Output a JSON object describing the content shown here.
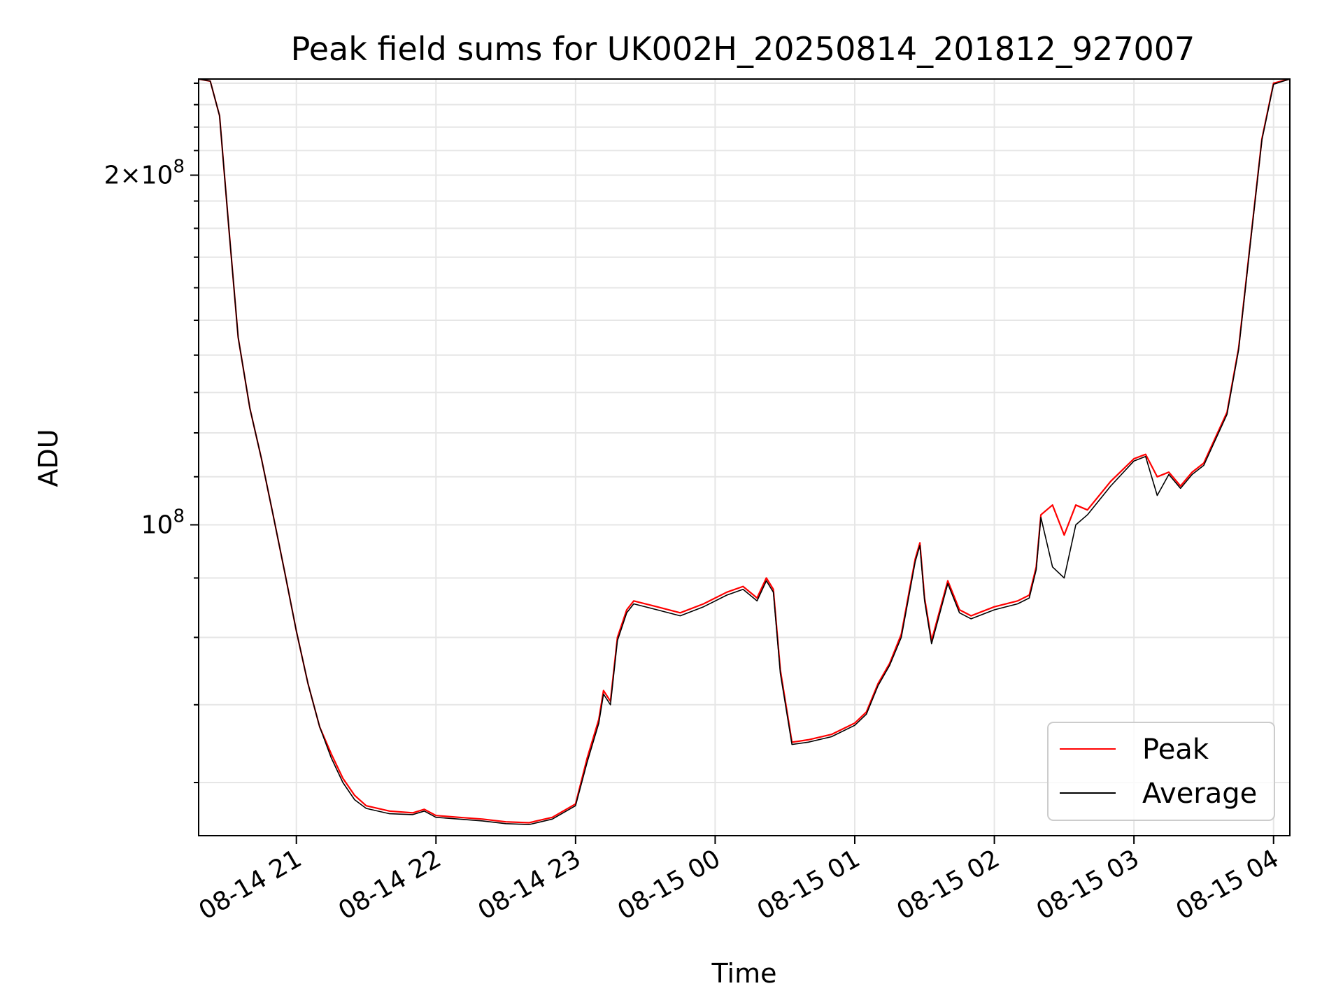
{
  "chart_data": {
    "type": "line",
    "title": "Peak field sums for UK002H_20250814_201812_927007",
    "xlabel": "Time",
    "ylabel": "ADU",
    "y_scale": "log",
    "ylim": [
      54000000,
      242000000
    ],
    "xlim": [
      "2025-08-14 20:18",
      "2025-08-15 04:07"
    ],
    "x_ticks": [
      "08-14 21",
      "08-14 22",
      "08-14 23",
      "08-15 00",
      "08-15 01",
      "08-15 02",
      "08-15 03",
      "08-15 04"
    ],
    "y_ticks": [
      {
        "label_base": "2",
        "label_exp": "8",
        "value": 200000000,
        "kind": "coef"
      },
      {
        "label_base": "10",
        "label_exp": "8",
        "value": 100000000,
        "kind": "pow"
      }
    ],
    "grid": true,
    "legend_position": "lower-right",
    "series": [
      {
        "name": "Peak",
        "color": "#ff0000",
        "x": [
          "2025-08-14 20:18",
          "2025-08-14 20:23",
          "2025-08-14 20:27",
          "2025-08-14 20:31",
          "2025-08-14 20:35",
          "2025-08-14 20:40",
          "2025-08-14 20:45",
          "2025-08-14 20:50",
          "2025-08-14 20:55",
          "2025-08-14 21:00",
          "2025-08-14 21:05",
          "2025-08-14 21:10",
          "2025-08-14 21:15",
          "2025-08-14 21:20",
          "2025-08-14 21:25",
          "2025-08-14 21:30",
          "2025-08-14 21:40",
          "2025-08-14 21:50",
          "2025-08-14 21:55",
          "2025-08-14 22:00",
          "2025-08-14 22:10",
          "2025-08-14 22:20",
          "2025-08-14 22:30",
          "2025-08-14 22:40",
          "2025-08-14 22:50",
          "2025-08-14 23:00",
          "2025-08-14 23:05",
          "2025-08-14 23:10",
          "2025-08-14 23:12",
          "2025-08-14 23:15",
          "2025-08-14 23:18",
          "2025-08-14 23:22",
          "2025-08-14 23:25",
          "2025-08-14 23:35",
          "2025-08-14 23:45",
          "2025-08-14 23:55",
          "2025-08-15 00:05",
          "2025-08-15 00:12",
          "2025-08-15 00:18",
          "2025-08-15 00:22",
          "2025-08-15 00:25",
          "2025-08-15 00:28",
          "2025-08-15 00:33",
          "2025-08-15 00:40",
          "2025-08-15 00:50",
          "2025-08-15 01:00",
          "2025-08-15 01:05",
          "2025-08-15 01:10",
          "2025-08-15 01:15",
          "2025-08-15 01:20",
          "2025-08-15 01:26",
          "2025-08-15 01:28",
          "2025-08-15 01:30",
          "2025-08-15 01:33",
          "2025-08-15 01:40",
          "2025-08-15 01:45",
          "2025-08-15 01:50",
          "2025-08-15 02:00",
          "2025-08-15 02:10",
          "2025-08-15 02:15",
          "2025-08-15 02:18",
          "2025-08-15 02:20",
          "2025-08-15 02:25",
          "2025-08-15 02:30",
          "2025-08-15 02:35",
          "2025-08-15 02:40",
          "2025-08-15 02:50",
          "2025-08-15 03:00",
          "2025-08-15 03:05",
          "2025-08-15 03:10",
          "2025-08-15 03:15",
          "2025-08-15 03:20",
          "2025-08-15 03:25",
          "2025-08-15 03:30",
          "2025-08-15 03:40",
          "2025-08-15 03:45",
          "2025-08-15 03:50",
          "2025-08-15 03:55",
          "2025-08-15 04:00",
          "2025-08-15 04:07"
        ],
        "y": [
          242000000,
          241000000,
          225000000,
          180000000,
          145000000,
          126000000,
          114000000,
          102000000,
          91000000,
          81000000,
          73000000,
          67000000,
          63500000,
          60500000,
          58500000,
          57300000,
          56700000,
          56500000,
          56900000,
          56200000,
          56000000,
          55800000,
          55500000,
          55400000,
          56000000,
          57500000,
          63000000,
          68000000,
          72000000,
          70500000,
          80000000,
          84500000,
          86000000,
          85000000,
          84000000,
          85500000,
          87500000,
          88500000,
          86500000,
          90000000,
          88000000,
          75000000,
          65000000,
          65300000,
          66000000,
          67500000,
          69000000,
          73000000,
          76000000,
          80500000,
          93500000,
          96500000,
          86500000,
          79500000,
          89500000,
          84500000,
          83500000,
          85000000,
          86000000,
          87000000,
          92000000,
          102000000,
          104000000,
          98000000,
          104000000,
          103000000,
          109000000,
          114000000,
          115000000,
          110000000,
          111000000,
          108000000,
          111000000,
          113000000,
          125000000,
          142000000,
          175000000,
          215000000,
          240000000,
          242000000
        ]
      },
      {
        "name": "Average",
        "color": "#000000",
        "x": [
          "2025-08-14 20:18",
          "2025-08-14 20:23",
          "2025-08-14 20:27",
          "2025-08-14 20:31",
          "2025-08-14 20:35",
          "2025-08-14 20:40",
          "2025-08-14 20:45",
          "2025-08-14 20:50",
          "2025-08-14 20:55",
          "2025-08-14 21:00",
          "2025-08-14 21:05",
          "2025-08-14 21:10",
          "2025-08-14 21:15",
          "2025-08-14 21:20",
          "2025-08-14 21:25",
          "2025-08-14 21:30",
          "2025-08-14 21:40",
          "2025-08-14 21:50",
          "2025-08-14 21:55",
          "2025-08-14 22:00",
          "2025-08-14 22:10",
          "2025-08-14 22:20",
          "2025-08-14 22:30",
          "2025-08-14 22:40",
          "2025-08-14 22:50",
          "2025-08-14 23:00",
          "2025-08-14 23:05",
          "2025-08-14 23:10",
          "2025-08-14 23:12",
          "2025-08-14 23:15",
          "2025-08-14 23:18",
          "2025-08-14 23:22",
          "2025-08-14 23:25",
          "2025-08-14 23:35",
          "2025-08-14 23:45",
          "2025-08-14 23:55",
          "2025-08-15 00:05",
          "2025-08-15 00:12",
          "2025-08-15 00:18",
          "2025-08-15 00:22",
          "2025-08-15 00:25",
          "2025-08-15 00:28",
          "2025-08-15 00:33",
          "2025-08-15 00:40",
          "2025-08-15 00:50",
          "2025-08-15 01:00",
          "2025-08-15 01:05",
          "2025-08-15 01:10",
          "2025-08-15 01:15",
          "2025-08-15 01:20",
          "2025-08-15 01:26",
          "2025-08-15 01:28",
          "2025-08-15 01:30",
          "2025-08-15 01:33",
          "2025-08-15 01:40",
          "2025-08-15 01:45",
          "2025-08-15 01:50",
          "2025-08-15 02:00",
          "2025-08-15 02:10",
          "2025-08-15 02:15",
          "2025-08-15 02:18",
          "2025-08-15 02:20",
          "2025-08-15 02:25",
          "2025-08-15 02:30",
          "2025-08-15 02:35",
          "2025-08-15 02:40",
          "2025-08-15 02:50",
          "2025-08-15 03:00",
          "2025-08-15 03:05",
          "2025-08-15 03:10",
          "2025-08-15 03:15",
          "2025-08-15 03:20",
          "2025-08-15 03:25",
          "2025-08-15 03:30",
          "2025-08-15 03:40",
          "2025-08-15 03:45",
          "2025-08-15 03:50",
          "2025-08-15 03:55",
          "2025-08-15 04:00",
          "2025-08-15 04:07"
        ],
        "y": [
          242000000,
          241000000,
          225000000,
          180000000,
          145000000,
          126000000,
          114000000,
          102000000,
          91000000,
          81000000,
          73000000,
          67000000,
          63000000,
          60000000,
          58000000,
          57000000,
          56400000,
          56300000,
          56700000,
          56000000,
          55800000,
          55600000,
          55300000,
          55200000,
          55800000,
          57300000,
          62500000,
          67500000,
          71500000,
          70000000,
          79500000,
          84000000,
          85500000,
          84500000,
          83500000,
          85000000,
          87000000,
          88000000,
          86000000,
          89500000,
          87500000,
          74500000,
          64700000,
          65000000,
          65700000,
          67200000,
          68700000,
          72700000,
          75700000,
          80000000,
          93000000,
          96000000,
          86000000,
          79000000,
          89000000,
          84000000,
          83000000,
          84500000,
          85500000,
          86500000,
          91500000,
          101500000,
          92000000,
          90000000,
          100000000,
          102000000,
          108000000,
          113500000,
          114500000,
          106000000,
          110500000,
          107500000,
          110500000,
          112500000,
          124500000,
          141500000,
          174500000,
          214500000,
          239500000,
          242000000
        ]
      }
    ]
  }
}
